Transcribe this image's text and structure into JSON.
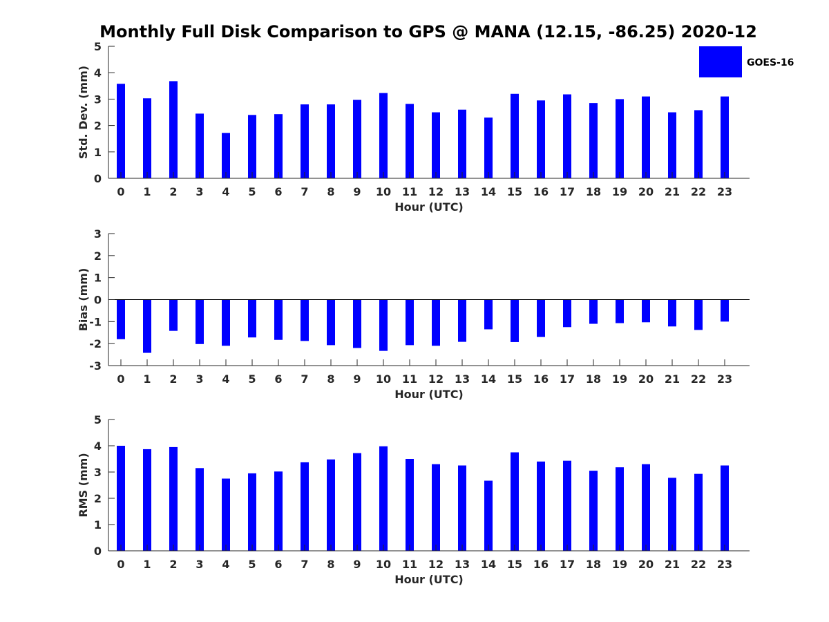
{
  "title": "Monthly Full Disk Comparison to GPS @ MANA (12.15, -86.25) 2020-12",
  "legend": {
    "label": "GOES-16",
    "placement": "top-right"
  },
  "colors": {
    "bar": "#0000ff",
    "axis": "#262626",
    "background": "#ffffff"
  },
  "chart_data": [
    {
      "type": "bar",
      "ylabel": "Std. Dev. (mm)",
      "xlabel": "Hour (UTC)",
      "ylim": [
        0,
        5
      ],
      "yticks": [
        0,
        1,
        2,
        3,
        4,
        5
      ],
      "categories": [
        "0",
        "1",
        "2",
        "3",
        "4",
        "5",
        "6",
        "7",
        "8",
        "9",
        "10",
        "11",
        "12",
        "13",
        "14",
        "15",
        "16",
        "17",
        "18",
        "19",
        "20",
        "21",
        "22",
        "23"
      ],
      "series": [
        {
          "name": "GOES-16",
          "values": [
            3.58,
            3.03,
            3.68,
            2.45,
            1.72,
            2.4,
            2.43,
            2.8,
            2.8,
            2.97,
            3.23,
            2.82,
            2.5,
            2.6,
            2.3,
            3.2,
            2.95,
            3.18,
            2.85,
            3.0,
            3.1,
            2.5,
            2.58,
            3.1
          ]
        }
      ],
      "grid": false
    },
    {
      "type": "bar",
      "ylabel": "Bias (mm)",
      "xlabel": "Hour (UTC)",
      "ylim": [
        -3,
        3
      ],
      "yticks": [
        -3,
        -2,
        -1,
        0,
        1,
        2,
        3
      ],
      "categories": [
        "0",
        "1",
        "2",
        "3",
        "4",
        "5",
        "6",
        "7",
        "8",
        "9",
        "10",
        "11",
        "12",
        "13",
        "14",
        "15",
        "16",
        "17",
        "18",
        "19",
        "20",
        "21",
        "22",
        "23"
      ],
      "series": [
        {
          "name": "GOES-16",
          "values": [
            -1.8,
            -2.42,
            -1.42,
            -2.02,
            -2.1,
            -1.72,
            -1.83,
            -1.88,
            -2.07,
            -2.2,
            -2.33,
            -2.07,
            -2.1,
            -1.92,
            -1.35,
            -1.93,
            -1.7,
            -1.25,
            -1.1,
            -1.07,
            -1.03,
            -1.22,
            -1.38,
            -1.0
          ]
        }
      ],
      "grid": false
    },
    {
      "type": "bar",
      "ylabel": "RMS (mm)",
      "xlabel": "Hour (UTC)",
      "ylim": [
        0,
        5
      ],
      "yticks": [
        0,
        1,
        2,
        3,
        4,
        5
      ],
      "categories": [
        "0",
        "1",
        "2",
        "3",
        "4",
        "5",
        "6",
        "7",
        "8",
        "9",
        "10",
        "11",
        "12",
        "13",
        "14",
        "15",
        "16",
        "17",
        "18",
        "19",
        "20",
        "21",
        "22",
        "23"
      ],
      "series": [
        {
          "name": "GOES-16",
          "values": [
            4.0,
            3.87,
            3.95,
            3.15,
            2.75,
            2.95,
            3.02,
            3.37,
            3.48,
            3.72,
            3.98,
            3.5,
            3.3,
            3.25,
            2.67,
            3.75,
            3.4,
            3.43,
            3.05,
            3.18,
            3.3,
            2.78,
            2.93,
            3.25
          ]
        }
      ],
      "grid": false
    }
  ]
}
